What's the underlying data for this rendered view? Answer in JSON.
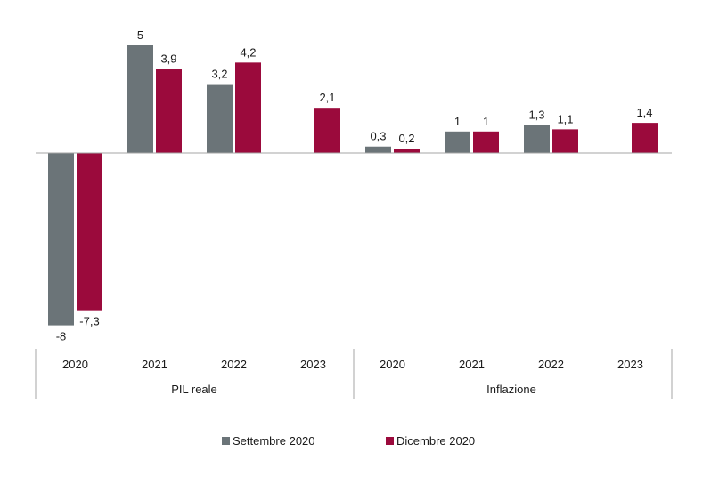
{
  "chart_data": {
    "type": "bar",
    "groups": [
      {
        "name": "PIL reale",
        "categories": [
          "2020",
          "2021",
          "2022",
          "2023"
        ]
      },
      {
        "name": "Inflazione",
        "categories": [
          "2020",
          "2021",
          "2022",
          "2023"
        ]
      }
    ],
    "series": [
      {
        "name": "Settembre 2020",
        "color": "#6b7478",
        "values": [
          -8,
          5,
          3.2,
          null,
          0.3,
          1,
          1.3,
          null
        ],
        "labels": [
          "-8",
          "5",
          "3,2",
          "",
          "0,3",
          "1",
          "1,3",
          ""
        ]
      },
      {
        "name": "Dicembre 2020",
        "color": "#9b0a3c",
        "values": [
          -7.3,
          3.9,
          4.2,
          2.1,
          0.2,
          1,
          1.1,
          1.4
        ],
        "labels": [
          "-7,3",
          "3,9",
          "4,2",
          "2,1",
          "0,2",
          "1",
          "1,1",
          "1,4"
        ]
      }
    ],
    "ylim": [
      -8,
      5
    ],
    "grid": false,
    "legend_position": "bottom"
  }
}
